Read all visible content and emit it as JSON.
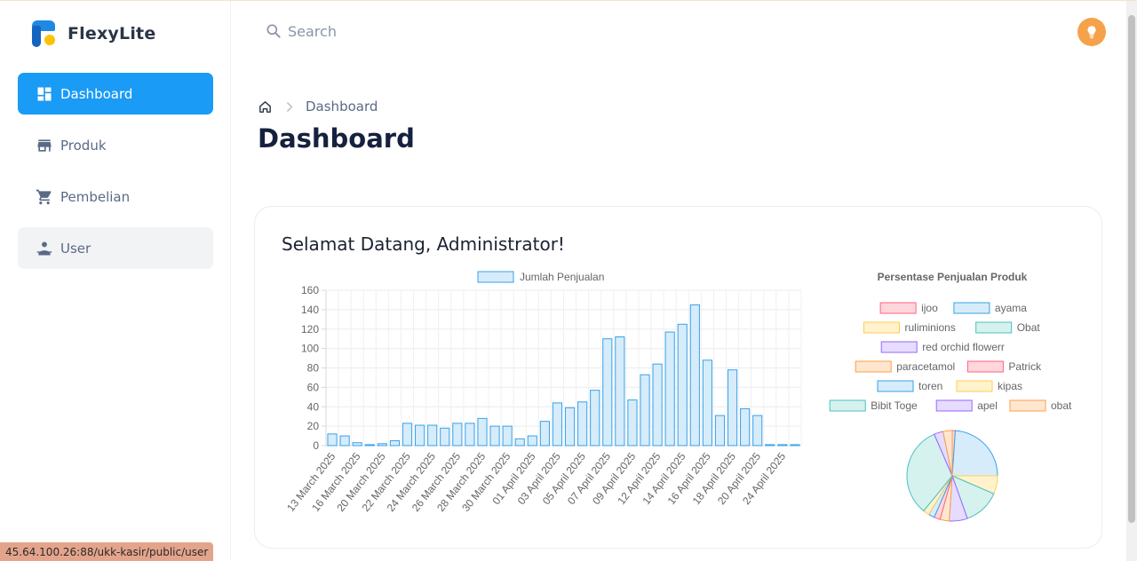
{
  "brand": {
    "name": "FlexyLite"
  },
  "sidebar": {
    "items": [
      {
        "label": "Dashboard",
        "icon": "dashboard-icon",
        "active": true
      },
      {
        "label": "Produk",
        "icon": "store-icon"
      },
      {
        "label": "Pembelian",
        "icon": "cart-icon"
      },
      {
        "label": "User",
        "icon": "user-icon"
      }
    ]
  },
  "header": {
    "search_placeholder": "Search",
    "avatar_icon": "lightbulb-icon"
  },
  "breadcrumb": {
    "current": "Dashboard"
  },
  "page": {
    "title": "Dashboard",
    "welcome": "Selamat Datang, Administrator!"
  },
  "status_url": "45.64.100.26:88/ukk-kasir/public/user",
  "colors": {
    "accent": "#1a9bf5",
    "bar_fill": "#d6ecfa",
    "bar_stroke": "#36a2eb"
  },
  "chart_data": [
    {
      "type": "bar",
      "title": "",
      "legend": [
        "Jumlah Penjualan"
      ],
      "legend_position": "top",
      "xlabel": "",
      "ylabel": "",
      "ylim": [
        0,
        160
      ],
      "yticks": [
        0,
        20,
        40,
        60,
        80,
        100,
        120,
        140,
        160
      ],
      "grid": true,
      "tick_labels_x": [
        "13 March 2025",
        "16 March 2025",
        "20 March 2025",
        "22 March 2025",
        "24 March 2025",
        "26 March 2025",
        "28 March 2025",
        "30 March 2025",
        "01 April 2025",
        "03 April 2025",
        "05 April 2025",
        "07 April 2025",
        "09 April 2025",
        "12 April 2025",
        "14 April 2025",
        "16 April 2025",
        "18 April 2025",
        "20 April 2025",
        "24 April 2025"
      ],
      "series": [
        {
          "name": "Jumlah Penjualan",
          "values": [
            12,
            10,
            3,
            1,
            2,
            5,
            23,
            21,
            21,
            18,
            23,
            23,
            28,
            20,
            20,
            7,
            10,
            25,
            44,
            39,
            45,
            57,
            110,
            112,
            47,
            73,
            84,
            117,
            125,
            145,
            88,
            31,
            78,
            38,
            31,
            1,
            1,
            1
          ]
        }
      ]
    },
    {
      "type": "pie",
      "title": "Persentase Penjualan Produk",
      "legend_position": "top",
      "labels": [
        "ijoo",
        "ayama",
        "ruliminions",
        "Obat",
        "red orchid flowerr",
        "paracetamol",
        "Patrick",
        "toren",
        "kipas",
        "Bibit Toge",
        "apel",
        "obat"
      ],
      "values": [
        1,
        22,
        6,
        12,
        6,
        3,
        2,
        2,
        2,
        30,
        3,
        3
      ]
    }
  ]
}
